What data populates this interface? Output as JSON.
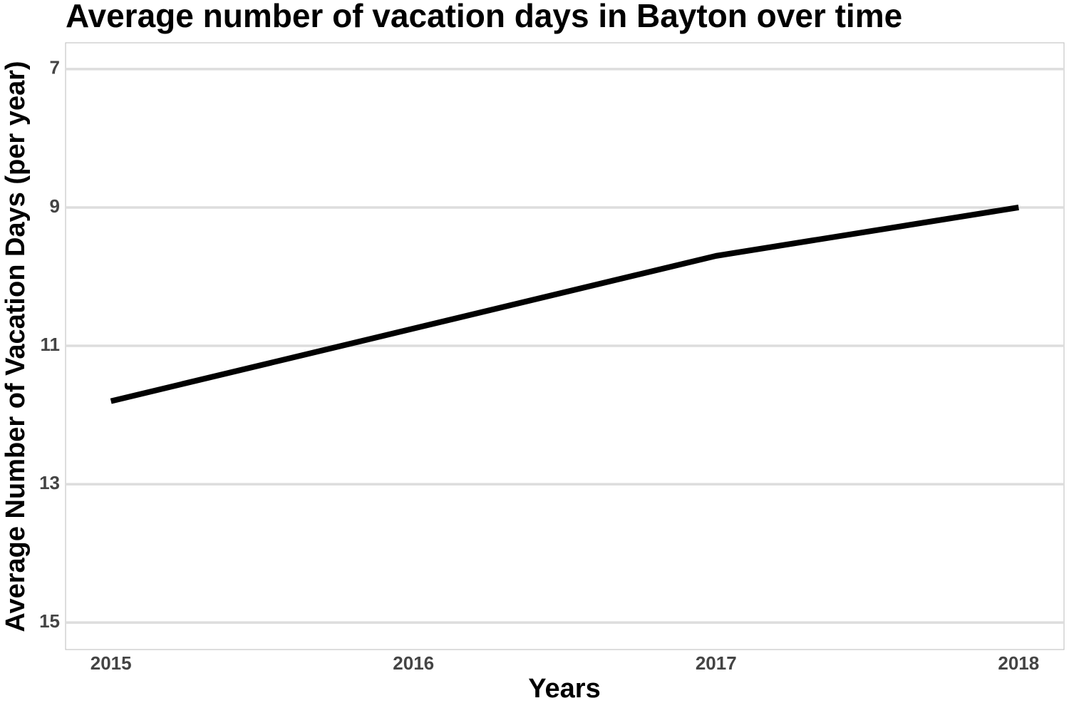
{
  "chart_data": {
    "type": "line",
    "title": "Average number of vacation days in Bayton over time",
    "x_label": "Years",
    "y_label": "Average Number of Vacation Days (per year)",
    "x": [
      2015,
      2016,
      2017,
      2018
    ],
    "series": [
      {
        "color": "#000000",
        "values": [
          11.8,
          10.75,
          9.7,
          9.0
        ]
      }
    ],
    "xlim": [
      2014.85,
      2018.15
    ],
    "xticks": [
      2015,
      2016,
      2017,
      2018
    ],
    "ylim": [
      6.62,
      15.39
    ],
    "yticks": [
      7,
      9,
      11,
      13,
      15
    ],
    "y_reversed": true,
    "grid": true
  }
}
